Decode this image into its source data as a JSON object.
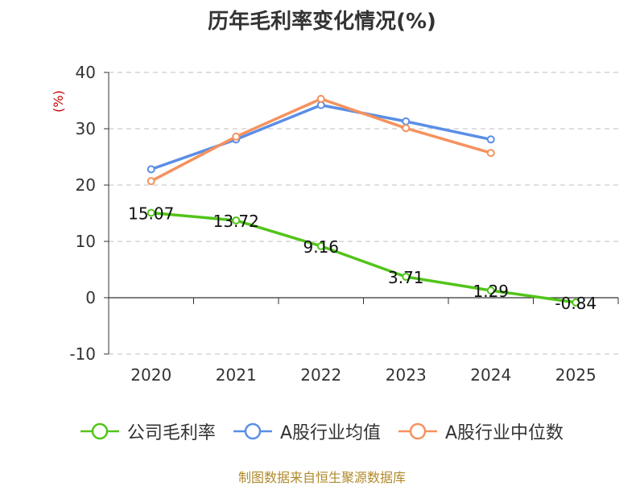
{
  "title": "历年毛利率变化情况(%)",
  "source_text": "制图数据来自恒生聚源数据库",
  "chart_data": {
    "type": "line",
    "title": "历年毛利率变化情况(%)",
    "ylabel": "(%)",
    "ylim": [
      -10,
      40
    ],
    "yticks": [
      -10,
      0,
      10,
      20,
      30,
      40
    ],
    "grid": true,
    "legend_position": "bottom",
    "categories": [
      "2020",
      "2021",
      "2022",
      "2023",
      "2024",
      "2025"
    ],
    "series": [
      {
        "name": "公司毛利率",
        "color": "#52c41a",
        "values": [
          15.07,
          13.72,
          9.16,
          3.71,
          1.29,
          -0.84
        ],
        "labels": [
          "15.07",
          "13.72",
          "9.16",
          "3.71",
          "1.29",
          "-0.84"
        ]
      },
      {
        "name": "A股行业均值",
        "color": "#5b8ee6",
        "values": [
          22.8,
          28.1,
          34.2,
          31.3,
          28.1,
          null
        ]
      },
      {
        "name": "A股行业中位数",
        "color": "#f5925e",
        "values": [
          20.7,
          28.6,
          35.3,
          30.1,
          25.7,
          null
        ]
      }
    ]
  }
}
